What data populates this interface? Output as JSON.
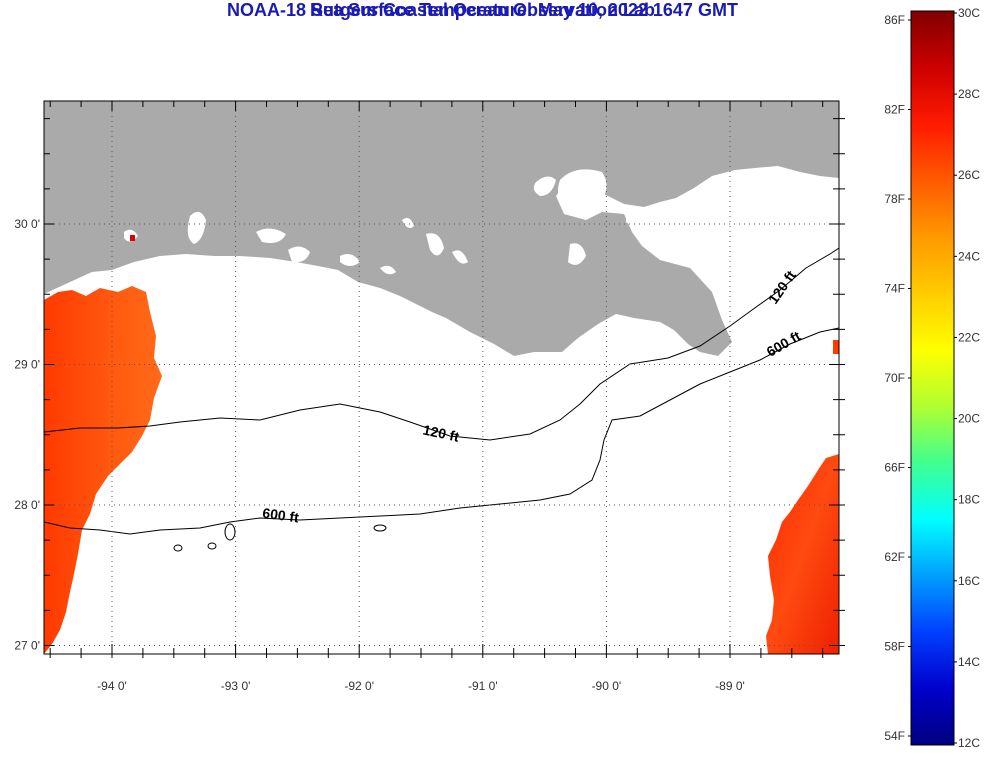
{
  "title_line1": "NOAA-18 Sea Surface Temperature:  May 10, 2022 1647 GMT",
  "title_line2": "Rutgers Coastal Ocean Observation Lab",
  "map": {
    "lon_labels": [
      "-94 0'",
      "-93 0'",
      "-92 0'",
      "-91 0'",
      "-90 0'",
      "-89 0'"
    ],
    "lat_labels": [
      "30 0'",
      "29 0'",
      "28 0'",
      "27 0'"
    ],
    "lon_values": [
      -94,
      -93,
      -92,
      -91,
      -90,
      -89
    ],
    "lat_values": [
      30,
      29,
      28,
      27
    ],
    "contour_labels": [
      {
        "text": "120 ft",
        "isobath_ft": 120
      },
      {
        "text": "600 ft",
        "isobath_ft": 600
      },
      {
        "text": "120 ft",
        "isobath_ft": 120
      },
      {
        "text": "600 ft",
        "isobath_ft": 600
      }
    ],
    "land_color": "#aaaaaa",
    "no_data_color": "#ffffff",
    "grid": "dotted"
  },
  "colorbar": {
    "fahrenheit_labels": [
      "86F",
      "82F",
      "78F",
      "74F",
      "70F",
      "66F",
      "62F",
      "58F",
      "54F"
    ],
    "celsius_labels": [
      "30C",
      "28C",
      "26C",
      "24C",
      "22C",
      "20C",
      "18C",
      "16C",
      "14C",
      "12C"
    ],
    "gradient_colors": [
      "#800000",
      "#cc0000",
      "#ff1a00",
      "#ff5a00",
      "#ff9900",
      "#ffcc00",
      "#ffff00",
      "#b0ff30",
      "#40ff90",
      "#00ffff",
      "#00a0ff",
      "#0040ff",
      "#0000cc",
      "#000080"
    ]
  }
}
